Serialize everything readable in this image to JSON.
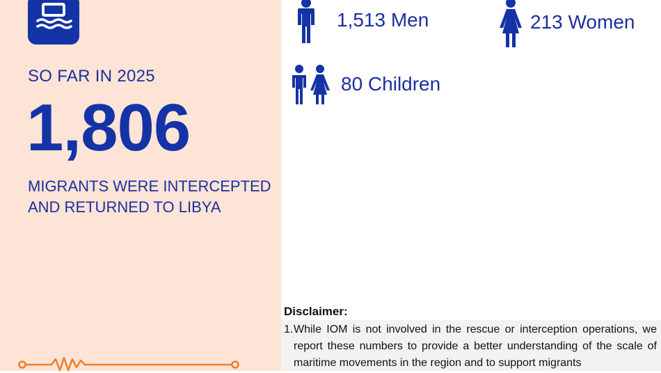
{
  "headline": {
    "period": "SO FAR IN 2025",
    "total": "1,806",
    "caption_line1": "MIGRANTS WERE INTERCEPTED",
    "caption_line2": "AND RETURNED TO LIBYA"
  },
  "stats": {
    "men": "1,513 Men",
    "women": "213 Women",
    "children": "80 Children"
  },
  "disclaimer": {
    "title": "Disclaimer:",
    "items": [
      {
        "number": "1.",
        "text": "While IOM is not involved in the rescue or interception operations, we report these numbers to provide a better understanding of the scale of maritime movements in the region and to support migrants"
      }
    ]
  },
  "icons": {
    "boat": "boat-icon",
    "man": "man-icon",
    "woman": "woman-icon",
    "children": "children-icon",
    "decor_line": "ecg-line-icon"
  },
  "colors": {
    "primary_blue": "#1433a6",
    "text_blue": "#1c2fa0",
    "left_panel_bg": "#fde4d6",
    "accent_orange": "#f07d2b"
  }
}
